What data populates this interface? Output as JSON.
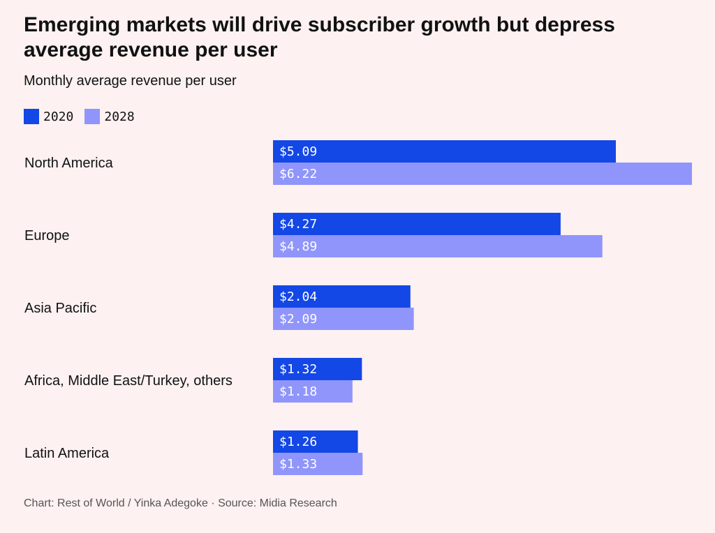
{
  "header": {
    "title": "Emerging markets will drive subscriber growth but depress average revenue per user",
    "subtitle": "Monthly average revenue per user"
  },
  "colors": {
    "series_2020": "#1347e6",
    "series_2028": "#9095fb",
    "background": "#fdf1f1"
  },
  "chart_data": {
    "type": "bar",
    "orientation": "horizontal",
    "title": "Emerging markets will drive subscriber growth but depress average revenue per user",
    "subtitle": "Monthly average revenue per user",
    "categories": [
      "North America",
      "Europe",
      "Asia Pacific",
      "Africa, Middle East/Turkey, others",
      "Latin America"
    ],
    "series": [
      {
        "name": "2020",
        "values": [
          5.09,
          4.27,
          2.04,
          1.32,
          1.26
        ],
        "labels": [
          "$5.09",
          "$4.27",
          "$2.04",
          "$1.32",
          "$1.26"
        ]
      },
      {
        "name": "2028",
        "values": [
          6.22,
          4.89,
          2.09,
          1.18,
          1.33
        ],
        "labels": [
          "$6.22",
          "$4.89",
          "$2.09",
          "$1.18",
          "$1.33"
        ]
      }
    ],
    "xlim": [
      0,
      6.22
    ],
    "grid": false,
    "legend": "top-left"
  },
  "footer": {
    "source": "Chart: Rest of World / Yinka Adegoke · Source: Midia Research"
  }
}
